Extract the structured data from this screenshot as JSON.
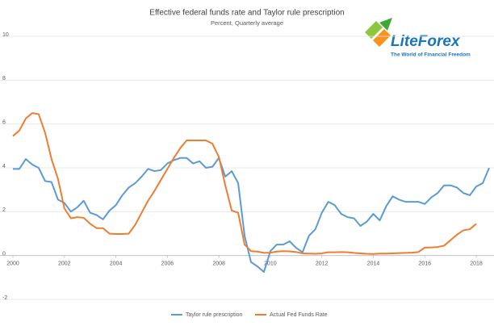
{
  "chart_data": {
    "type": "line",
    "title": "Effective federal funds rate and Taylor rule prescription",
    "subtitle": "Percent, Quarterly average",
    "logo": {
      "name": "LiteForex",
      "tagline": "The World of Financial Freedom"
    },
    "x": [
      2000,
      2000.25,
      2000.5,
      2000.75,
      2001,
      2001.25,
      2001.5,
      2001.75,
      2002,
      2002.25,
      2002.5,
      2002.75,
      2003,
      2003.25,
      2003.5,
      2003.75,
      2004,
      2004.25,
      2004.5,
      2004.75,
      2005,
      2005.25,
      2005.5,
      2005.75,
      2006,
      2006.25,
      2006.5,
      2006.75,
      2007,
      2007.25,
      2007.5,
      2007.75,
      2008,
      2008.25,
      2008.5,
      2008.75,
      2009,
      2009.25,
      2009.5,
      2009.75,
      2010,
      2010.25,
      2010.5,
      2010.75,
      2011,
      2011.25,
      2011.5,
      2011.75,
      2012,
      2012.25,
      2012.5,
      2012.75,
      2013,
      2013.25,
      2013.5,
      2013.75,
      2014,
      2014.25,
      2014.5,
      2014.75,
      2015,
      2015.25,
      2015.5,
      2015.75,
      2016,
      2016.25,
      2016.5,
      2016.75,
      2017,
      2017.25,
      2017.5,
      2017.75,
      2018,
      2018.25,
      2018.5
    ],
    "series": [
      {
        "name": "Taylor rule prescription",
        "color": "#5b9bd5",
        "values": [
          3.95,
          3.95,
          4.4,
          4.15,
          4.0,
          3.4,
          3.35,
          2.55,
          2.4,
          2.0,
          2.2,
          2.5,
          1.95,
          1.85,
          1.65,
          2.05,
          2.3,
          2.75,
          3.1,
          3.3,
          3.6,
          3.95,
          3.85,
          3.9,
          4.2,
          4.35,
          4.45,
          4.45,
          4.2,
          4.3,
          4.0,
          4.05,
          4.45,
          3.6,
          3.85,
          3.3,
          0.9,
          -0.3,
          -0.5,
          -0.75,
          0.2,
          0.5,
          0.5,
          0.65,
          0.35,
          0.15,
          0.9,
          1.2,
          1.95,
          2.45,
          2.3,
          1.9,
          1.75,
          1.7,
          1.35,
          1.55,
          1.9,
          1.6,
          2.25,
          2.7,
          2.55,
          2.45,
          2.45,
          2.45,
          2.35,
          2.65,
          2.85,
          3.2,
          3.2,
          3.1,
          2.85,
          2.75,
          3.15,
          3.3,
          4.0
        ]
      },
      {
        "name": "Actual Fed Funds Rate",
        "color": "#ed7d31",
        "values": [
          5.45,
          5.7,
          6.25,
          6.5,
          6.45,
          5.6,
          4.4,
          3.5,
          2.15,
          1.7,
          1.75,
          1.72,
          1.45,
          1.25,
          1.25,
          1.0,
          0.98,
          0.98,
          1.0,
          1.4,
          1.95,
          2.5,
          2.95,
          3.45,
          3.95,
          4.45,
          4.9,
          5.25,
          5.25,
          5.25,
          5.25,
          5.1,
          4.5,
          3.2,
          2.05,
          1.95,
          0.5,
          0.2,
          0.18,
          0.12,
          0.13,
          0.18,
          0.2,
          0.19,
          0.16,
          0.1,
          0.09,
          0.08,
          0.1,
          0.15,
          0.15,
          0.16,
          0.15,
          0.12,
          0.1,
          0.08,
          0.07,
          0.09,
          0.09,
          0.1,
          0.11,
          0.12,
          0.13,
          0.16,
          0.36,
          0.37,
          0.39,
          0.45,
          0.7,
          0.95,
          1.15,
          1.2,
          1.45,
          null,
          null
        ]
      }
    ],
    "xlim": [
      2000,
      2018.5
    ],
    "xticks": [
      2000,
      2002,
      2004,
      2006,
      2008,
      2010,
      2012,
      2014,
      2016,
      2018
    ],
    "ylim": [
      -2,
      10
    ],
    "yticks": [
      -2,
      0,
      2,
      4,
      6,
      8,
      10
    ],
    "grid": true,
    "legend": "bottom"
  }
}
